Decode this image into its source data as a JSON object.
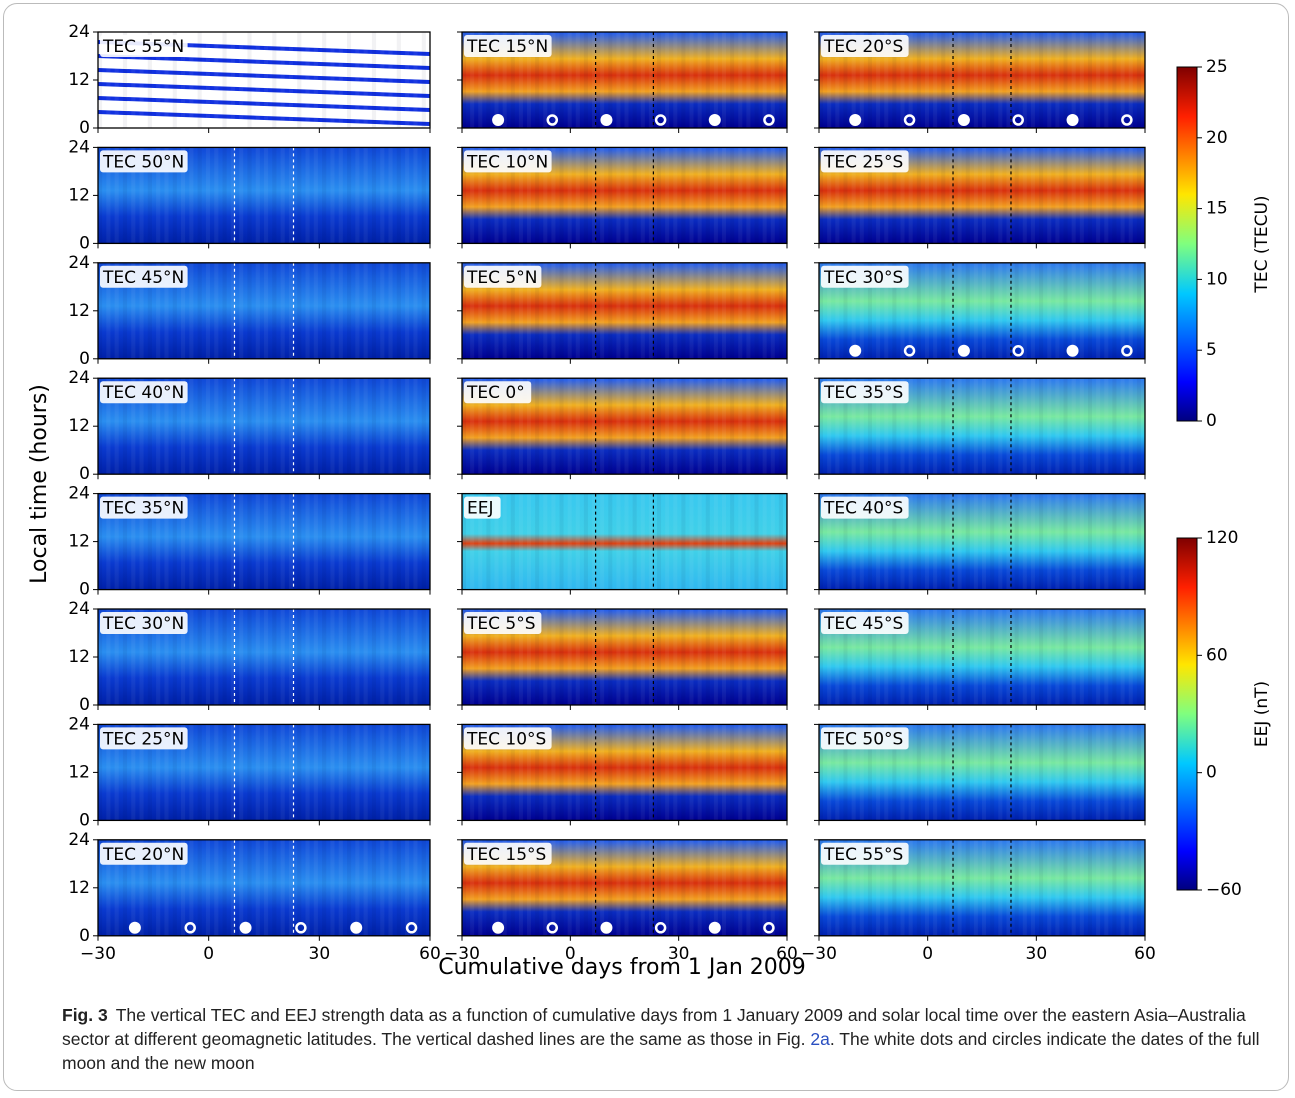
{
  "chart_data": {
    "type": "heatmap-grid",
    "xlabel": "Cumulative days from 1 Jan 2009",
    "ylabel": "Local time (hours)",
    "xlim": [
      -30,
      60
    ],
    "xticks": [
      {
        "value": -30,
        "label": "−30"
      },
      0,
      30,
      60
    ],
    "ylim": [
      0,
      24
    ],
    "yticks": [
      0,
      12,
      24
    ],
    "dashed_lines": [
      7,
      23
    ],
    "full_moon": [
      -20,
      10,
      40
    ],
    "new_moon": [
      -5,
      25,
      55
    ],
    "moon_marker_lt": 2,
    "columns": [
      [
        {
          "label": "TEC 55°N",
          "moons": false
        },
        {
          "label": "TEC 50°N",
          "moons": false
        },
        {
          "label": "TEC 45°N",
          "moons": false
        },
        {
          "label": "TEC 40°N",
          "moons": false
        },
        {
          "label": "TEC 35°N",
          "moons": false
        },
        {
          "label": "TEC 30°N",
          "moons": false
        },
        {
          "label": "TEC 25°N",
          "moons": false
        },
        {
          "label": "TEC 20°N",
          "moons": true
        }
      ],
      [
        {
          "label": "TEC 15°N",
          "moons": true
        },
        {
          "label": "TEC 10°N",
          "moons": false
        },
        {
          "label": "TEC 5°N",
          "moons": false
        },
        {
          "label": "TEC 0°",
          "moons": false
        },
        {
          "label": "EEJ",
          "moons": false
        },
        {
          "label": "TEC 5°S",
          "moons": false
        },
        {
          "label": "TEC 10°S",
          "moons": false
        },
        {
          "label": "TEC 15°S",
          "moons": true
        }
      ],
      [
        {
          "label": "TEC 20°S",
          "moons": true
        },
        {
          "label": "TEC 25°S",
          "moons": false
        },
        {
          "label": "TEC 30°S",
          "moons": true
        },
        {
          "label": "TEC 35°S",
          "moons": false
        },
        {
          "label": "TEC 40°S",
          "moons": false
        },
        {
          "label": "TEC 45°S",
          "moons": false
        },
        {
          "label": "TEC 50°S",
          "moons": false
        },
        {
          "label": "TEC 55°S",
          "moons": false
        }
      ]
    ],
    "colorbars": [
      {
        "label": "TEC (TECU)",
        "lim": [
          0,
          25
        ],
        "ticks": [
          0,
          5,
          10,
          15,
          20,
          25
        ]
      },
      {
        "label": "EEJ (nT)",
        "lim": [
          -60,
          120
        ],
        "ticks": [
          {
            "value": -60,
            "label": "−60"
          },
          0,
          60,
          120
        ]
      }
    ]
  },
  "caption": {
    "fig": "Fig. 3",
    "text_before": "The vertical TEC and EEJ strength data as a function of cumulative days from 1 January 2009 and solar local time over the eastern Asia–Australia sector at different geomagnetic latitudes. The vertical dashed lines are the same as those in Fig. ",
    "link": "2a",
    "text_after": ". The white dots and circles indicate the dates of the full moon and the new moon"
  }
}
